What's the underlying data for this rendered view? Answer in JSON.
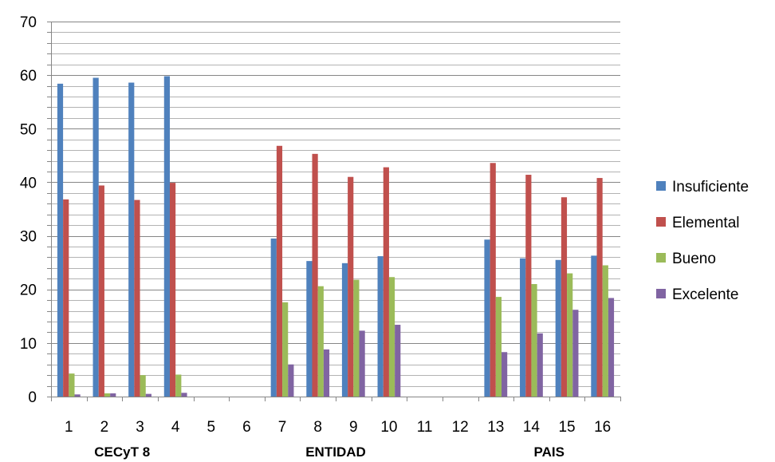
{
  "chart_data": {
    "type": "bar",
    "categories": [
      "1",
      "2",
      "3",
      "4",
      "5",
      "6",
      "7",
      "8",
      "9",
      "10",
      "11",
      "12",
      "13",
      "14",
      "15",
      "16"
    ],
    "groups": [
      {
        "label": "CECyT 8",
        "from": 1,
        "to": 4
      },
      {
        "label": "ENTIDAD",
        "from": 7,
        "to": 10
      },
      {
        "label": "PAIS",
        "from": 13,
        "to": 16
      }
    ],
    "series": [
      {
        "name": "Insuficiente",
        "color": "#4F81BD",
        "values": [
          58.4,
          59.5,
          58.6,
          59.8,
          0,
          0,
          29.5,
          25.3,
          24.9,
          26.2,
          0,
          0,
          29.3,
          25.8,
          25.5,
          26.3
        ]
      },
      {
        "name": "Elemental",
        "color": "#C0504D",
        "values": [
          36.8,
          39.4,
          36.7,
          39.9,
          0,
          0,
          46.8,
          45.3,
          41.0,
          42.8,
          0,
          0,
          43.6,
          41.4,
          37.2,
          40.8
        ]
      },
      {
        "name": "Bueno",
        "color": "#9BBB59",
        "values": [
          4.3,
          0.6,
          4.0,
          4.1,
          0,
          0,
          17.6,
          20.6,
          21.8,
          22.3,
          0,
          0,
          18.6,
          21.0,
          23.0,
          24.5
        ]
      },
      {
        "name": "Excelente",
        "color": "#8064A2",
        "values": [
          0.4,
          0.6,
          0.5,
          0.7,
          0,
          0,
          6.0,
          8.8,
          12.3,
          13.4,
          0,
          0,
          8.3,
          11.8,
          16.2,
          18.4
        ]
      }
    ],
    "yticks": [
      0,
      10,
      20,
      30,
      40,
      50,
      60,
      70
    ],
    "ylim": [
      0,
      70
    ],
    "minor_gridlines_step": 2,
    "grid": true,
    "legend_position": "right",
    "title": "",
    "xlabel": "",
    "ylabel": ""
  }
}
